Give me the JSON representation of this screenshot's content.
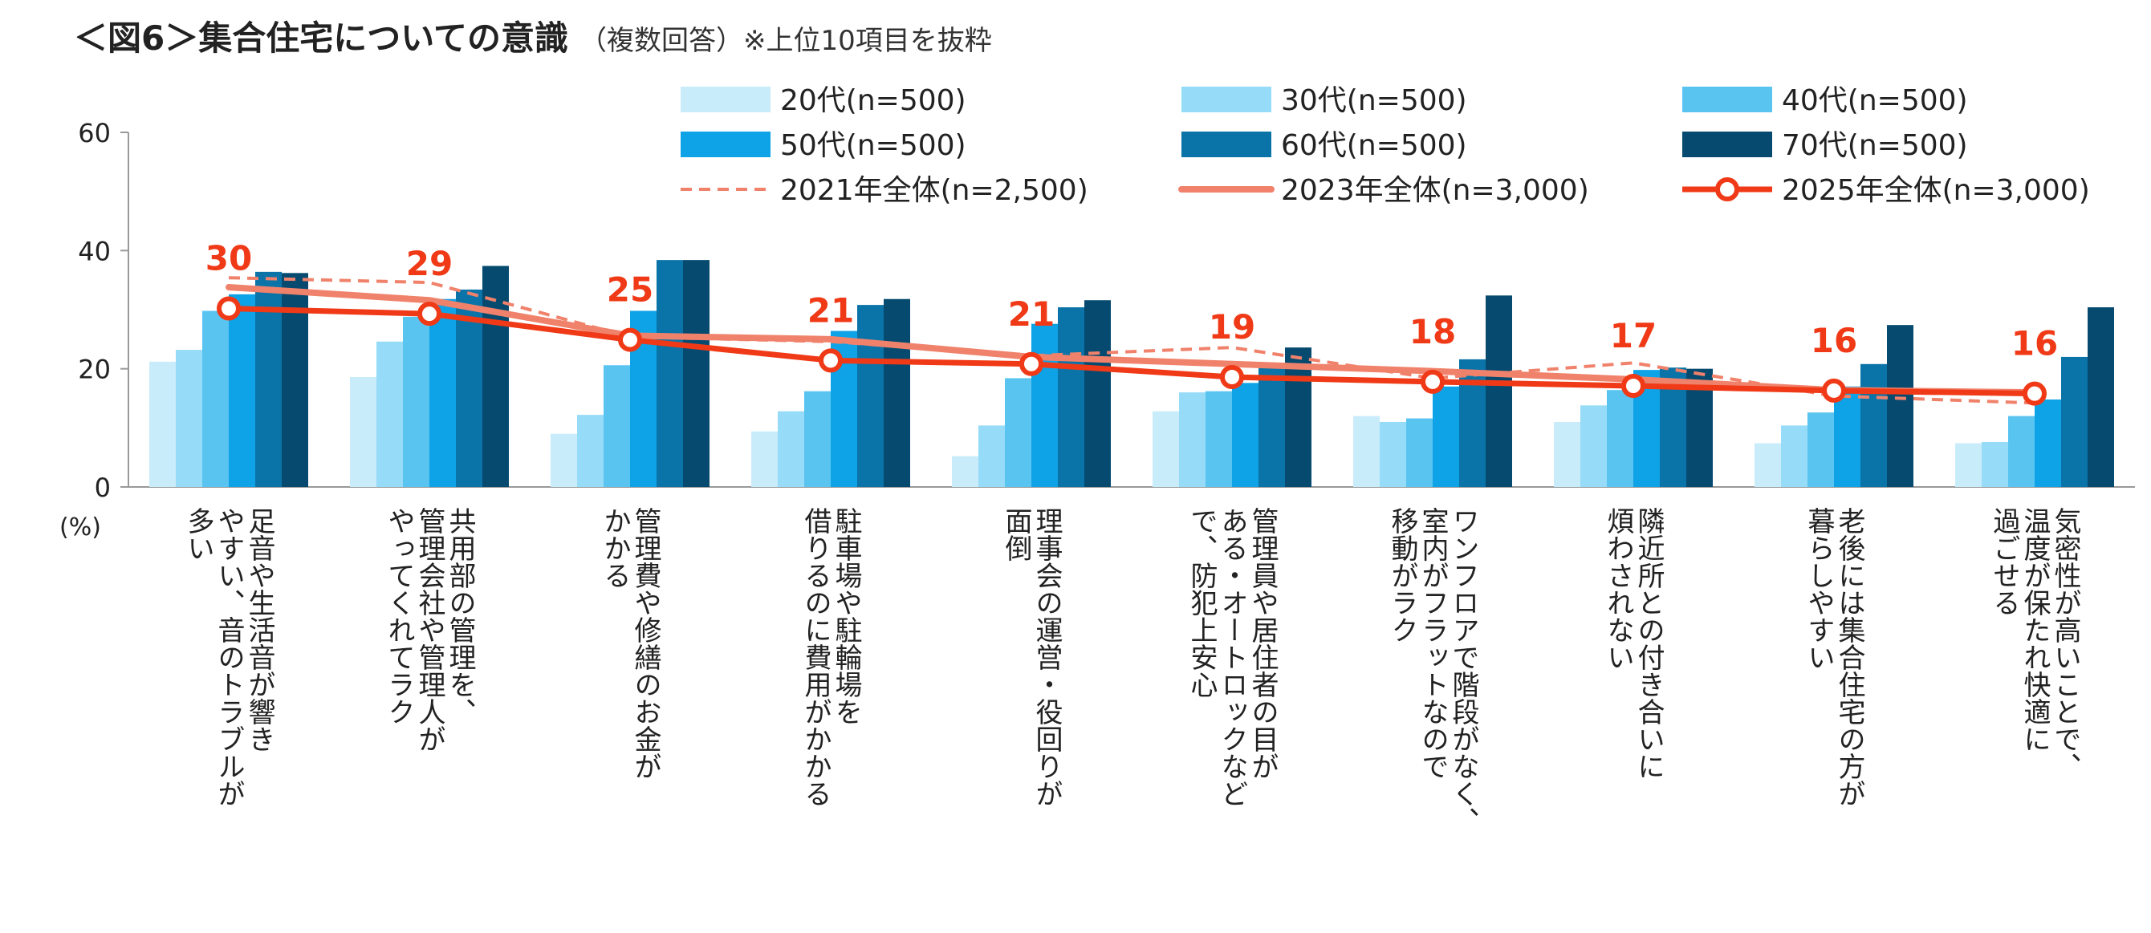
{
  "title": {
    "main": "＜図6＞集合住宅についての意識",
    "sub": "（複数回答）※上位10項目を抜粋"
  },
  "chart_data": {
    "type": "bar",
    "ylabel": "(%)",
    "ylim": [
      0,
      60
    ],
    "yticks": [
      "0",
      "20",
      "40",
      "60"
    ],
    "legend_position": "top",
    "categories": [
      [
        "足音や生活音が響き",
        "やすい、音のトラブルが",
        "多い"
      ],
      [
        "共用部の管理を、",
        "管理会社や管理人が",
        "やってくれてラク"
      ],
      [
        "管理費や修繕のお金が",
        "かかる"
      ],
      [
        "駐車場や駐輪場を",
        "借りるのに費用がかかる"
      ],
      [
        "理事会の運営・役回りが",
        "面倒"
      ],
      [
        "管理員や居住者の目が",
        "ある・オートロックなど",
        "で、防犯上安心"
      ],
      [
        "ワンフロアで階段がなく、",
        "室内がフラットなので",
        "移動がラク"
      ],
      [
        "隣近所との付き合いに",
        "煩わされない"
      ],
      [
        "老後には集合住宅の方が",
        "暮らしやすい"
      ],
      [
        "気密性が高いことで、",
        "温度が保たれ快適に",
        "過ごせる"
      ]
    ],
    "bar_series": [
      {
        "name": "20代(n=500)",
        "color": "#c9ecfb",
        "values": [
          21.2,
          18.6,
          9.0,
          9.4,
          5.2,
          12.8,
          12.0,
          11.0,
          7.4,
          7.4
        ]
      },
      {
        "name": "30代(n=500)",
        "color": "#96dbf7",
        "values": [
          23.2,
          24.6,
          12.2,
          12.8,
          10.4,
          16.0,
          11.0,
          13.8,
          10.4,
          7.6
        ]
      },
      {
        "name": "40代(n=500)",
        "color": "#5ac4f1",
        "values": [
          29.8,
          28.8,
          20.6,
          16.2,
          18.4,
          16.2,
          11.6,
          16.4,
          12.6,
          12.0
        ]
      },
      {
        "name": "50代(n=500)",
        "color": "#0ea2e6",
        "values": [
          32.6,
          31.8,
          29.8,
          26.4,
          27.6,
          17.6,
          17.0,
          19.8,
          17.0,
          14.8
        ]
      },
      {
        "name": "60代(n=500)",
        "color": "#0a73a8",
        "values": [
          36.4,
          33.4,
          38.4,
          30.8,
          30.4,
          20.2,
          21.6,
          20.2,
          20.8,
          22.0
        ]
      },
      {
        "name": "70代(n=500)",
        "color": "#064a6f",
        "values": [
          36.2,
          37.4,
          38.4,
          31.8,
          31.6,
          23.6,
          32.4,
          20.0,
          27.4,
          30.4
        ]
      }
    ],
    "line_series": [
      {
        "name": "2021年全体(n=2,500)",
        "style": "dashed",
        "color": "#f0826b",
        "values": [
          35.4,
          34.6,
          25.4,
          24.6,
          22.2,
          23.6,
          18.4,
          21.0,
          15.4,
          14.2
        ]
      },
      {
        "name": "2023年全体(n=3,000)",
        "style": "solid",
        "color": "#f0826b",
        "values": [
          33.8,
          31.6,
          25.6,
          25.0,
          22.0,
          20.8,
          19.6,
          18.2,
          16.4,
          16.0
        ]
      },
      {
        "name": "2025年全体(n=3,000)",
        "style": "marker",
        "color": "#f03a17",
        "values": [
          30.2,
          29.3,
          24.9,
          21.4,
          20.8,
          18.6,
          17.8,
          17.1,
          16.3,
          15.8
        ]
      }
    ],
    "data_labels": [
      "30",
      "29",
      "25",
      "21",
      "21",
      "19",
      "18",
      "17",
      "16",
      "16"
    ]
  }
}
